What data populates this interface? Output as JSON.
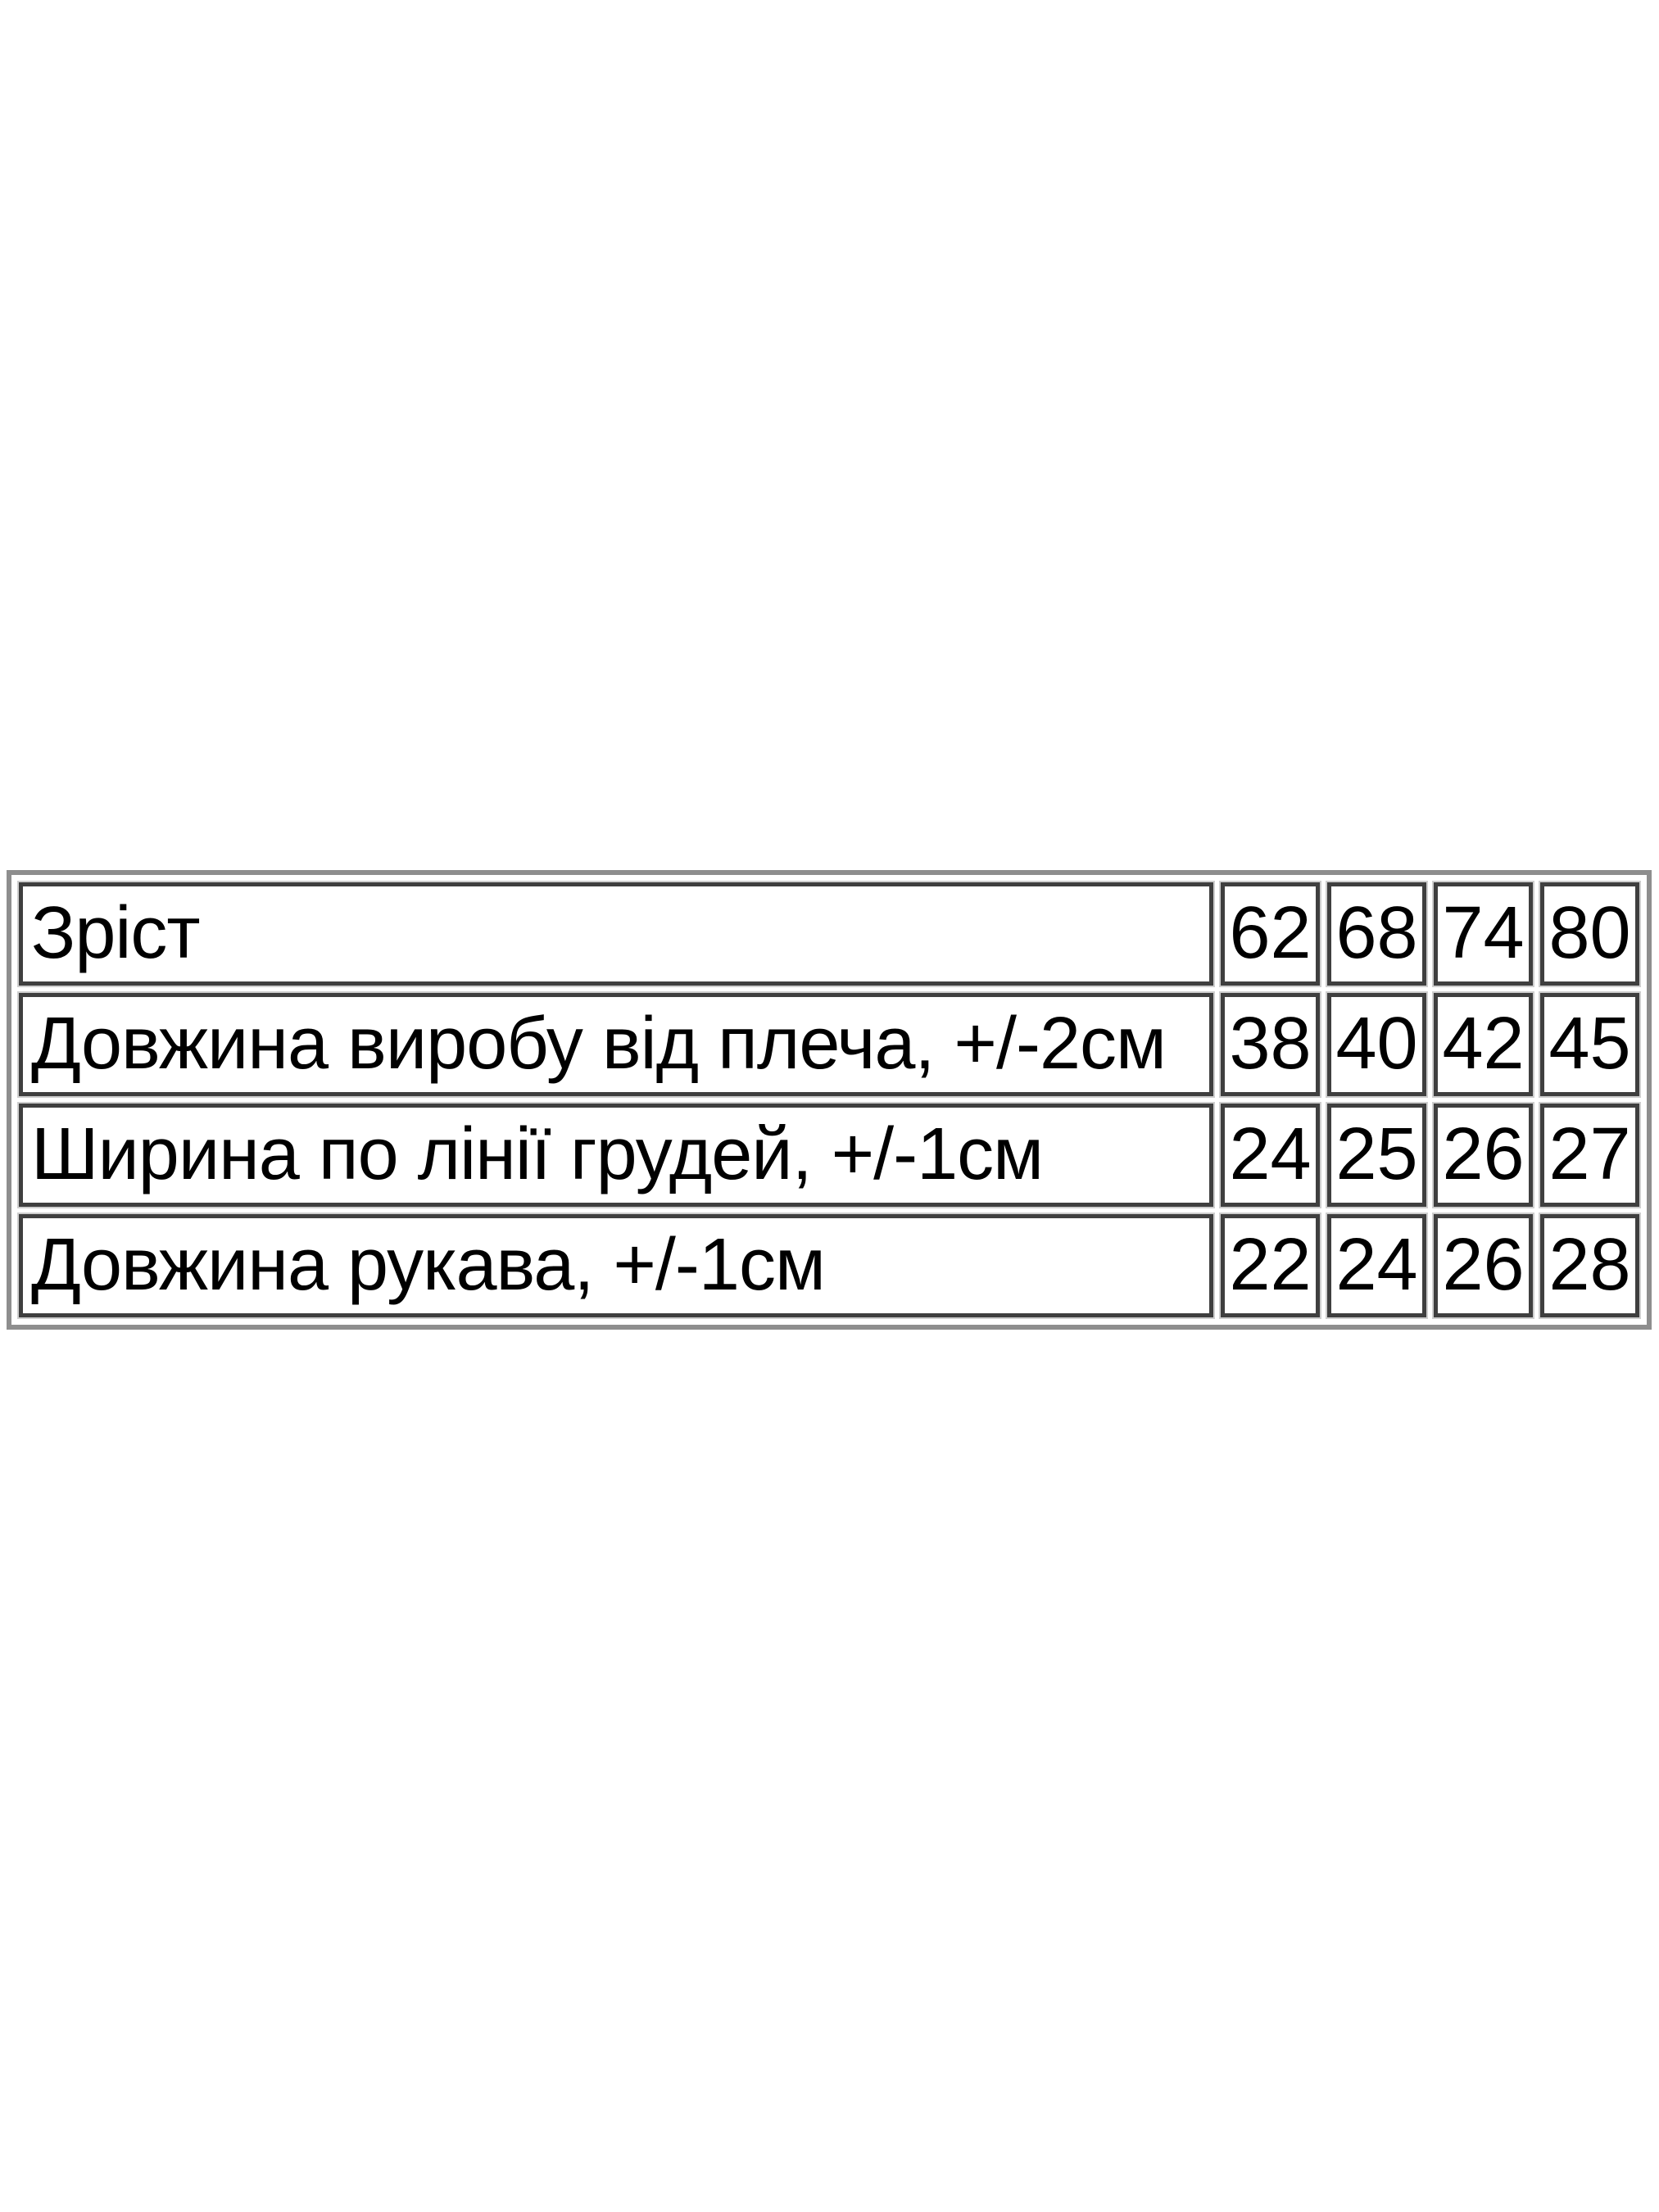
{
  "size_chart": {
    "rows": [
      {
        "label": "Зріст",
        "values": [
          "62",
          "68",
          "74",
          "80"
        ]
      },
      {
        "label": "Довжина виробу від плеча, +/-2см",
        "values": [
          "38",
          "40",
          "42",
          "45"
        ]
      },
      {
        "label": "Ширина по лінії грудей, +/-1см",
        "values": [
          "24",
          "25",
          "26",
          "27"
        ]
      },
      {
        "label": "Довжина рукава, +/-1см",
        "values": [
          "22",
          "24",
          "26",
          "28"
        ]
      }
    ]
  },
  "colors": {
    "background": "#ffffff",
    "text": "#000000",
    "cell_border": "#3f3f3f",
    "table_border": "#8e8e8e"
  }
}
